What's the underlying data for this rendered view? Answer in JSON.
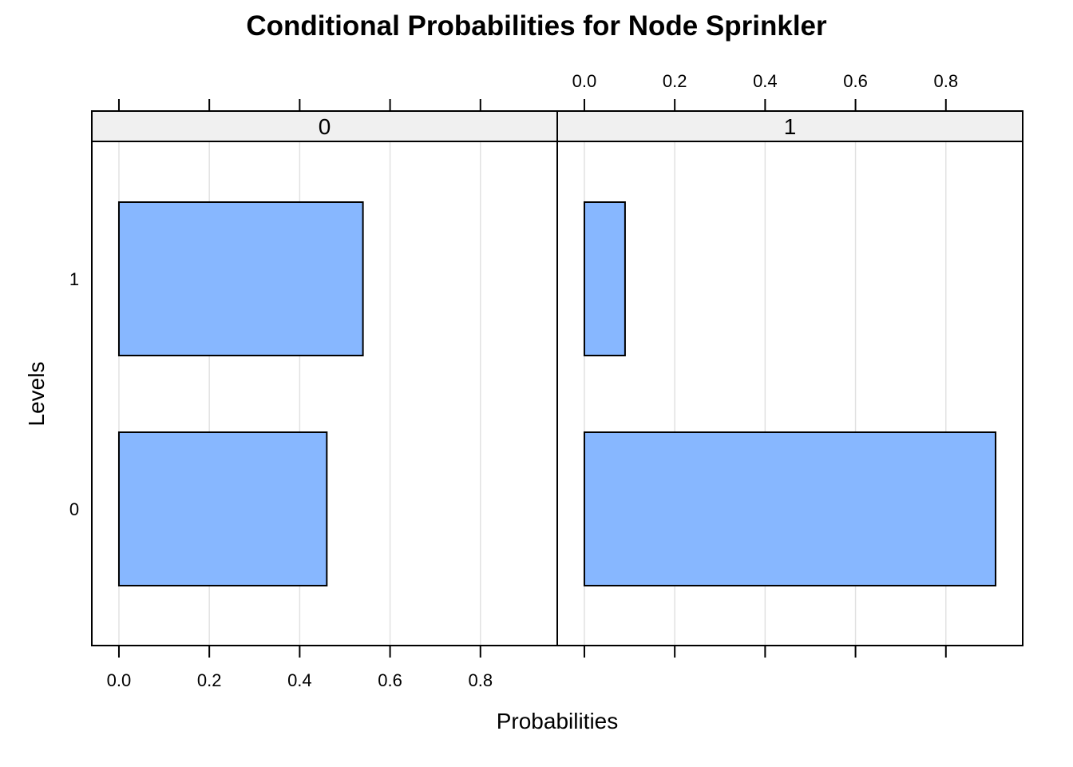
{
  "chart_data": {
    "type": "bar",
    "orientation": "horizontal",
    "title": "Conditional Probabilities for Node Sprinkler",
    "xlabel": "Probabilities",
    "ylabel": "Levels",
    "xlim": [
      -0.06,
      0.97
    ],
    "x_ticks": [
      "0.0",
      "0.2",
      "0.4",
      "0.6",
      "0.8"
    ],
    "categories": [
      "0",
      "1"
    ],
    "grid": true,
    "bar_color": "#87b7ff",
    "panels": [
      {
        "strip": "0",
        "values": [
          0.46,
          0.54
        ]
      },
      {
        "strip": "1",
        "values": [
          0.91,
          0.09
        ]
      }
    ]
  }
}
